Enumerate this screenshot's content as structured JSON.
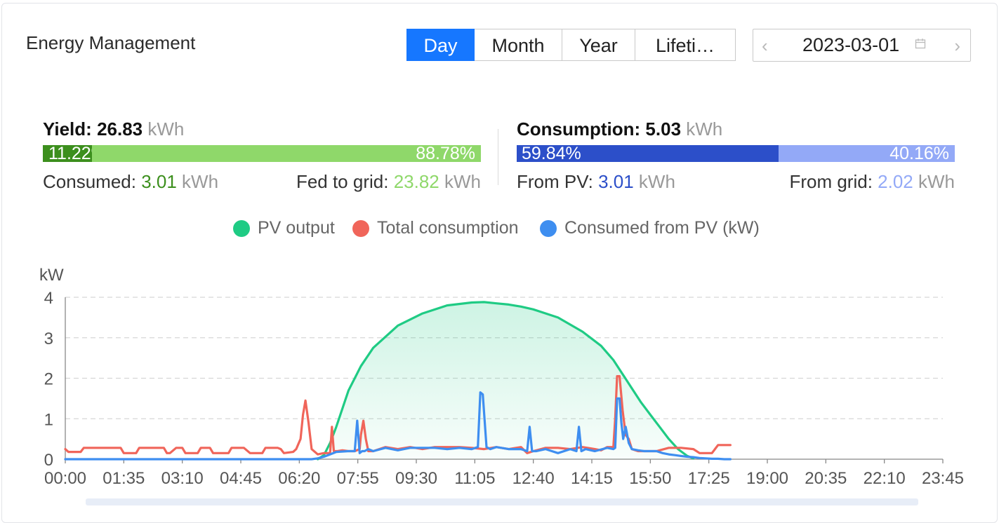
{
  "header": {
    "title": "Energy Management"
  },
  "range_tabs": [
    {
      "label": "Day",
      "active": true
    },
    {
      "label": "Month",
      "active": false
    },
    {
      "label": "Year",
      "active": false
    },
    {
      "label": "Lifeti…",
      "active": false
    }
  ],
  "date_picker": {
    "value": "2023-03-01",
    "prev": "‹",
    "next": "›"
  },
  "yield": {
    "label": "Yield:",
    "value": "26.83",
    "unit": "kWh",
    "consumed_pct": "11.22%",
    "fed_pct": "88.78%",
    "consumed_fraction": 0.1122,
    "consumed_label": "Consumed:",
    "consumed_value": "3.01",
    "consumed_unit": "kWh",
    "fed_label": "Fed to grid:",
    "fed_value": "23.82",
    "fed_unit": "kWh"
  },
  "consumption": {
    "label": "Consumption:",
    "value": "5.03",
    "unit": "kWh",
    "pv_pct": "59.84%",
    "grid_pct": "40.16%",
    "pv_fraction": 0.5984,
    "pv_label": "From PV:",
    "pv_value": "3.01",
    "pv_unit": "kWh",
    "grid_label": "From grid:",
    "grid_value": "2.02",
    "grid_unit": "kWh"
  },
  "colors": {
    "accent": "#1677ff",
    "yield_dark": "#3c8f1d",
    "yield_light": "#8fd86a",
    "consumed_text": "#3c8f1d",
    "fed_text": "#8fd86a",
    "cons_dark": "#2c4fc9",
    "cons_light": "#93a9f7",
    "pv_text": "#2c4fc9",
    "grid_text": "#93a9f7",
    "pv": "#1fcb84",
    "total": "#f0655a",
    "consumed_pv": "#3e8ef0"
  },
  "chart_data": {
    "type": "line",
    "ylabel": "kW",
    "ylim": [
      0,
      4
    ],
    "yticks": [
      "0",
      "1",
      "2",
      "3",
      "4"
    ],
    "xlim": [
      0,
      1425
    ],
    "xticks": [
      "00:00",
      "01:35",
      "03:10",
      "04:45",
      "06:20",
      "07:55",
      "09:30",
      "11:05",
      "12:40",
      "14:15",
      "15:50",
      "17:25",
      "19:00",
      "20:35",
      "22:10",
      "23:45"
    ],
    "legend": [
      "PV output",
      "Total consumption",
      "Consumed from PV (kW)"
    ],
    "series": [
      {
        "name": "PV output",
        "color": "#1fcb84",
        "x": [
          410,
          420,
          430,
          440,
          460,
          480,
          500,
          540,
          580,
          620,
          660,
          680,
          700,
          720,
          740,
          760,
          800,
          840,
          870,
          890,
          905,
          920,
          935,
          950,
          965,
          980,
          995,
          1010,
          1020
        ],
        "y": [
          0,
          0.1,
          0.4,
          0.8,
          1.7,
          2.3,
          2.75,
          3.3,
          3.6,
          3.8,
          3.87,
          3.88,
          3.85,
          3.82,
          3.77,
          3.7,
          3.5,
          3.15,
          2.8,
          2.45,
          2.1,
          1.75,
          1.4,
          1.1,
          0.8,
          0.5,
          0.25,
          0.08,
          0.02
        ]
      },
      {
        "name": "Total consumption",
        "color": "#f0655a",
        "x": [
          0,
          5,
          10,
          25,
          30,
          60,
          90,
          95,
          100,
          115,
          120,
          160,
          165,
          170,
          180,
          190,
          195,
          215,
          220,
          235,
          240,
          265,
          270,
          290,
          300,
          320,
          325,
          345,
          350,
          355,
          370,
          375,
          382,
          386,
          390,
          395,
          400,
          410,
          420,
          430,
          433,
          436,
          442,
          450,
          460,
          470,
          478,
          480,
          484,
          488,
          492,
          500,
          520,
          540,
          560,
          580,
          600,
          620,
          640,
          660,
          680,
          700,
          720,
          740,
          750,
          760,
          780,
          800,
          820,
          840,
          860,
          870,
          880,
          890,
          893,
          896,
          900,
          905,
          910,
          915,
          920,
          930,
          940,
          960,
          980,
          1000,
          1020,
          1030,
          1040,
          1050,
          1060,
          1070,
          1080
        ],
        "y": [
          0.25,
          0.18,
          0.18,
          0.18,
          0.28,
          0.28,
          0.28,
          0.15,
          0.15,
          0.15,
          0.28,
          0.28,
          0.15,
          0.15,
          0.28,
          0.28,
          0.15,
          0.15,
          0.28,
          0.28,
          0.15,
          0.15,
          0.28,
          0.28,
          0.15,
          0.15,
          0.28,
          0.28,
          0.25,
          0.15,
          0.18,
          0.25,
          0.5,
          1.1,
          1.45,
          0.9,
          0.25,
          0.12,
          0.15,
          0.15,
          0.8,
          0.2,
          0.2,
          0.22,
          0.2,
          0.2,
          0.25,
          0.6,
          0.95,
          0.5,
          0.2,
          0.2,
          0.3,
          0.25,
          0.3,
          0.25,
          0.3,
          0.3,
          0.3,
          0.28,
          0.25,
          0.3,
          0.25,
          0.3,
          0.15,
          0.2,
          0.28,
          0.28,
          0.25,
          0.3,
          0.25,
          0.22,
          0.3,
          0.3,
          1.0,
          2.05,
          2.05,
          1.2,
          0.6,
          0.5,
          0.25,
          0.2,
          0.2,
          0.2,
          0.28,
          0.28,
          0.25,
          0.15,
          0.15,
          0.15,
          0.35,
          0.35,
          0.35
        ]
      },
      {
        "name": "Consumed from PV (kW)",
        "color": "#3e8ef0",
        "x": [
          0,
          400,
          410,
          420,
          430,
          440,
          460,
          470,
          474,
          478,
          482,
          486,
          492,
          500,
          520,
          540,
          560,
          580,
          600,
          620,
          640,
          660,
          670,
          674,
          678,
          684,
          690,
          700,
          720,
          740,
          750,
          754,
          758,
          765,
          780,
          800,
          820,
          830,
          834,
          838,
          845,
          860,
          880,
          890,
          893,
          896,
          900,
          903,
          906,
          910,
          915,
          920,
          930,
          940,
          950,
          960,
          970,
          980,
          990,
          1000,
          1010,
          1020,
          1030,
          1040,
          1050,
          1060,
          1070,
          1080
        ],
        "y": [
          0,
          0,
          0.02,
          0.06,
          0.12,
          0.18,
          0.2,
          0.2,
          0.95,
          0.15,
          0.2,
          0.2,
          0.25,
          0.2,
          0.28,
          0.22,
          0.28,
          0.28,
          0.28,
          0.25,
          0.28,
          0.25,
          0.3,
          1.65,
          1.6,
          0.3,
          0.25,
          0.3,
          0.25,
          0.25,
          0.2,
          0.8,
          0.2,
          0.2,
          0.25,
          0.15,
          0.25,
          0.2,
          0.8,
          0.2,
          0.25,
          0.2,
          0.28,
          0.25,
          0.28,
          1.5,
          1.5,
          0.9,
          0.5,
          0.8,
          0.4,
          0.25,
          0.22,
          0.2,
          0.2,
          0.2,
          0.15,
          0.12,
          0.1,
          0.08,
          0.06,
          0.05,
          0.03,
          0.02,
          0.01,
          0.01,
          0,
          0
        ]
      }
    ]
  }
}
